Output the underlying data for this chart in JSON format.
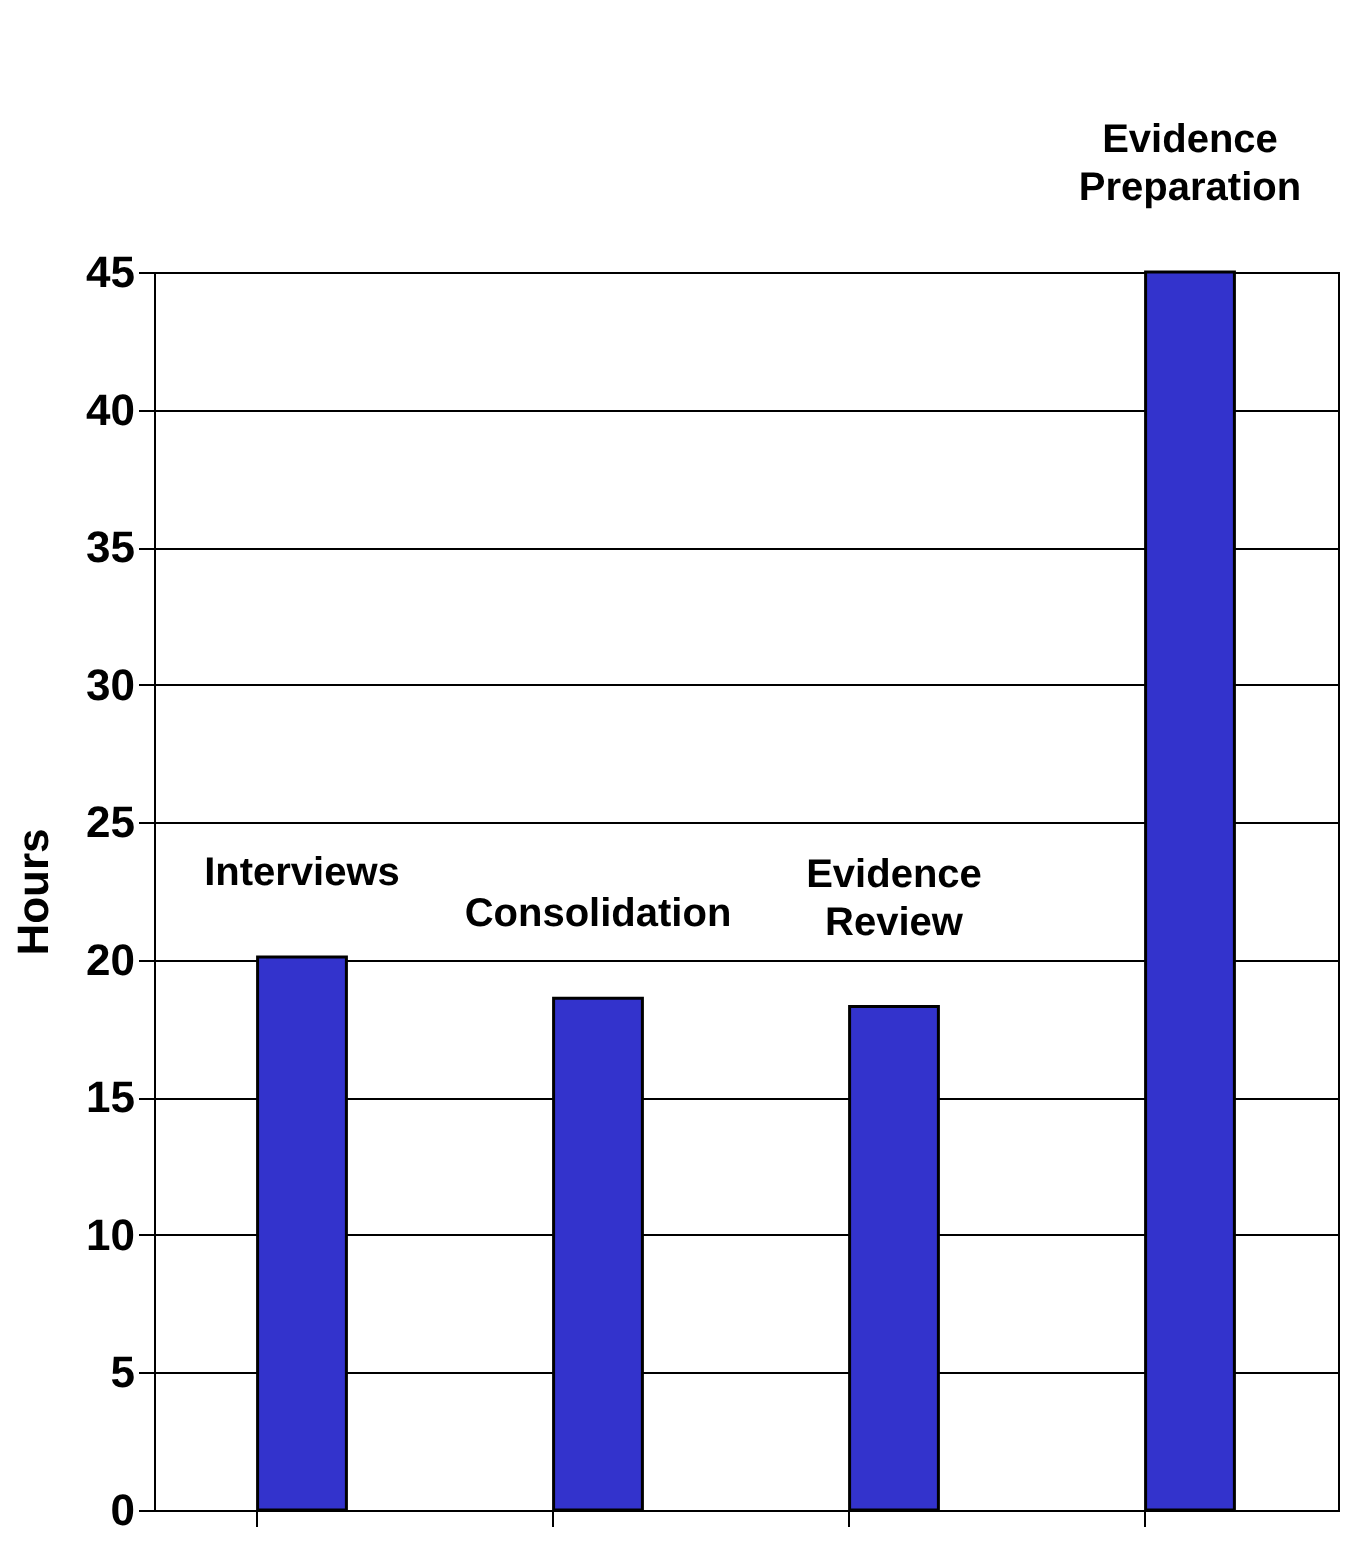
{
  "chart_data": {
    "type": "bar",
    "ylabel": "Hours",
    "categories": [
      "Interviews",
      "Consolidation",
      "Evidence Review",
      "Evidence Preparation"
    ],
    "values": [
      20.1,
      18.6,
      18.3,
      45
    ],
    "color": "#3333cc",
    "ylim": [
      0,
      45
    ],
    "yticks": [
      0,
      5,
      10,
      15,
      20,
      25,
      30,
      35,
      40,
      45
    ],
    "grid": "y",
    "tick_labels": "y"
  }
}
